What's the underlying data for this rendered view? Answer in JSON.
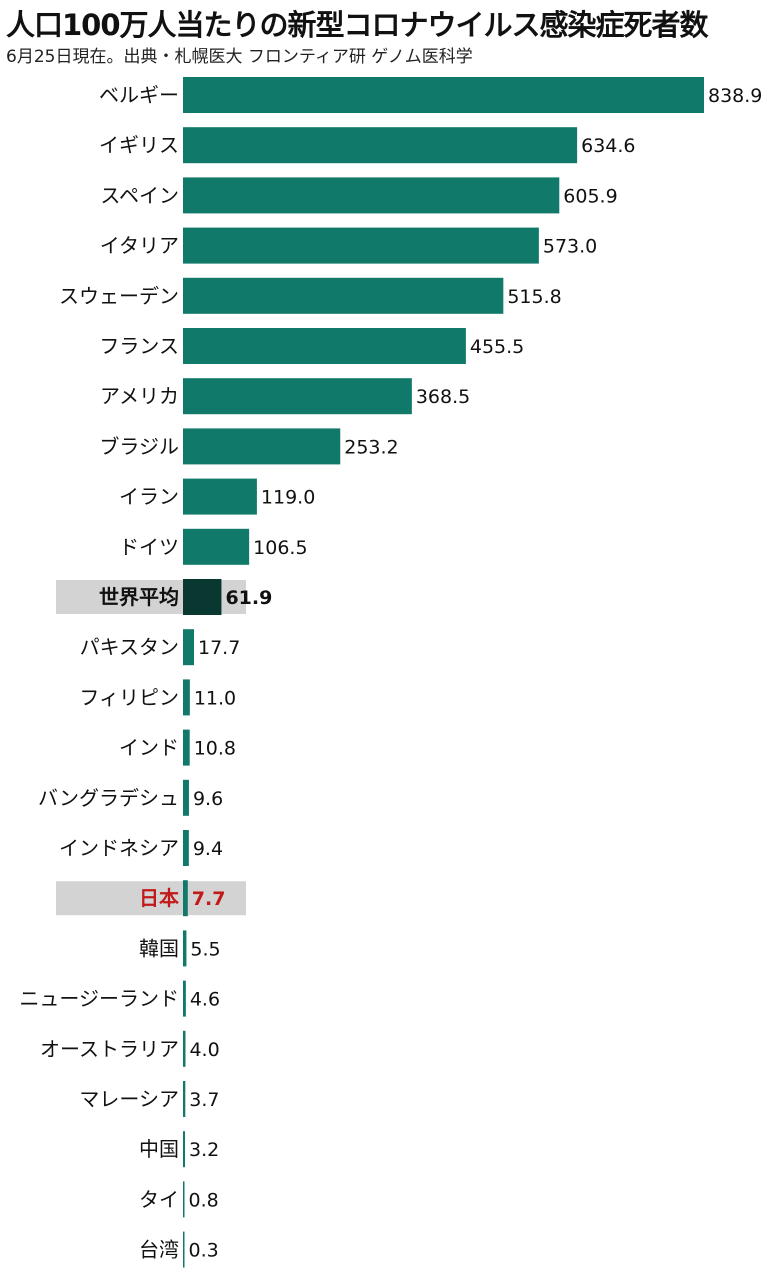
{
  "title": "人口100万人当たりの新型コロナウイルス感染症死者数",
  "subtitle": "6月25日現在。出典・札幌医大 フロンティア研 ゲノム医科学",
  "colors": {
    "bar": "#10796a",
    "world_bar": "#08382f",
    "highlight_bg": "#d3d3d3",
    "japan_text": "#c11a1a"
  },
  "chart_data": {
    "type": "bar",
    "orientation": "horizontal",
    "title": "人口100万人当たりの新型コロナウイルス感染症死者数",
    "subtitle": "6月25日現在。出典・札幌医大 フロンティア研 ゲノム医科学",
    "categories": [
      "ベルギー",
      "イギリス",
      "スペイン",
      "イタリア",
      "スウェーデン",
      "フランス",
      "アメリカ",
      "ブラジル",
      "イラン",
      "ドイツ",
      "世界平均",
      "パキスタン",
      "フィリピン",
      "インド",
      "バングラデシュ",
      "インドネシア",
      "日本",
      "韓国",
      "ニュージーランド",
      "オーストラリア",
      "マレーシア",
      "中国",
      "タイ",
      "台湾"
    ],
    "values": [
      838.9,
      634.6,
      605.9,
      573.0,
      515.8,
      455.5,
      368.5,
      253.2,
      119.0,
      106.5,
      61.9,
      17.7,
      11.0,
      10.8,
      9.6,
      9.4,
      7.7,
      5.5,
      4.6,
      4.0,
      3.7,
      3.2,
      0.8,
      0.3
    ],
    "value_labels": [
      "838.9",
      "634.6",
      "605.9",
      "573.0",
      "515.8",
      "455.5",
      "368.5",
      "253.2",
      "119.0",
      "106.5",
      "61.9",
      "17.7",
      "11.0",
      "10.8",
      "9.6",
      "9.4",
      "7.7",
      "5.5",
      "4.6",
      "4.0",
      "3.7",
      "3.2",
      "0.8",
      "0.3"
    ],
    "highlighted": [
      "世界平均",
      "日本"
    ],
    "xlim": [
      0,
      838.9
    ],
    "grid": false,
    "legend": "none"
  }
}
